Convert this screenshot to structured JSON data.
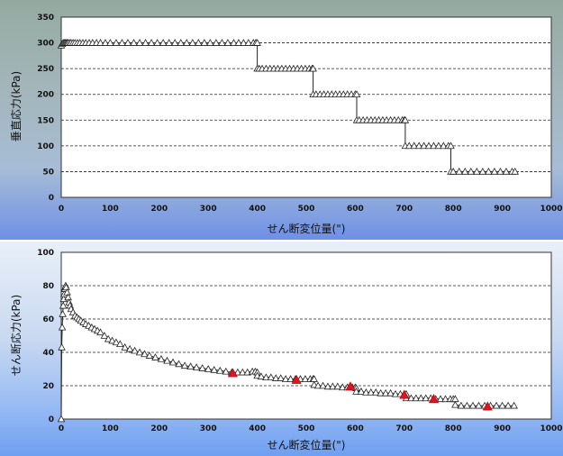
{
  "chart_data": [
    {
      "type": "line",
      "xlabel": "せん断変位量(\")",
      "ylabel": "垂直応力(kPa)",
      "xlim": [
        0,
        1000
      ],
      "ylim": [
        0,
        350
      ],
      "x_ticks": [
        "0",
        "100",
        "200",
        "300",
        "400",
        "500",
        "600",
        "700",
        "800",
        "900",
        "1000"
      ],
      "y_ticks": [
        "0",
        "50",
        "100",
        "150",
        "200",
        "250",
        "300",
        "350"
      ],
      "grid": "horizontal dashed",
      "marker": "open-triangle",
      "series": [
        {
          "values_x": [
            0,
            2,
            4,
            6,
            8,
            10,
            12,
            14,
            17,
            20,
            24,
            28,
            33,
            38,
            44,
            50,
            57,
            64,
            72,
            80,
            90,
            100,
            112,
            124,
            136,
            148,
            160,
            172,
            184,
            196,
            208,
            220,
            232,
            244,
            256,
            268,
            280,
            292,
            304,
            316,
            328,
            340,
            352,
            362,
            372,
            382,
            392,
            397,
            400,
            400,
            404,
            410,
            418,
            426,
            434,
            442,
            450,
            458,
            466,
            474,
            482,
            490,
            498,
            506,
            512,
            514,
            514,
            520,
            528,
            536,
            544,
            552,
            560,
            568,
            576,
            584,
            592,
            600,
            603,
            603,
            608,
            616,
            624,
            632,
            640,
            648,
            656,
            664,
            672,
            680,
            688,
            696,
            700,
            702,
            702,
            710,
            720,
            730,
            740,
            750,
            760,
            770,
            780,
            790,
            795,
            795,
            800,
            812,
            824,
            836,
            848,
            860,
            872,
            884,
            896,
            908,
            920,
            926
          ],
          "values_y": [
            295,
            298,
            300,
            300,
            300,
            300,
            300,
            300,
            300,
            300,
            300,
            300,
            300,
            300,
            300,
            300,
            300,
            300,
            300,
            300,
            300,
            300,
            300,
            300,
            300,
            300,
            300,
            300,
            300,
            300,
            300,
            300,
            300,
            300,
            300,
            300,
            300,
            300,
            300,
            300,
            300,
            300,
            300,
            300,
            300,
            300,
            300,
            300,
            300,
            250,
            250,
            250,
            250,
            250,
            250,
            250,
            250,
            250,
            250,
            250,
            250,
            250,
            250,
            250,
            250,
            250,
            200,
            200,
            200,
            200,
            200,
            200,
            200,
            200,
            200,
            200,
            200,
            200,
            200,
            150,
            150,
            150,
            150,
            150,
            150,
            150,
            150,
            150,
            150,
            150,
            150,
            150,
            150,
            150,
            100,
            100,
            100,
            100,
            100,
            100,
            100,
            100,
            100,
            100,
            100,
            50,
            50,
            50,
            50,
            50,
            50,
            50,
            50,
            50,
            50,
            50,
            50,
            50
          ]
        }
      ]
    },
    {
      "type": "scatter",
      "xlabel": "せん断変位量(\")",
      "ylabel": "せん断応力(kPa)",
      "xlim": [
        0,
        1000
      ],
      "ylim": [
        0,
        100
      ],
      "x_ticks": [
        "0",
        "100",
        "200",
        "300",
        "400",
        "500",
        "600",
        "700",
        "800",
        "900",
        "1000"
      ],
      "y_ticks": [
        "0",
        "20",
        "40",
        "60",
        "80",
        "100"
      ],
      "grid": "horizontal dashed",
      "marker": "open-triangle",
      "series": [
        {
          "values_x": [
            0,
            1,
            2,
            3,
            4,
            5,
            6,
            7,
            8,
            9,
            10,
            12,
            14,
            16,
            18,
            20,
            24,
            28,
            32,
            36,
            40,
            45,
            50,
            56,
            62,
            68,
            74,
            80,
            88,
            96,
            104,
            112,
            120,
            130,
            140,
            150,
            160,
            170,
            180,
            192,
            204,
            216,
            228,
            240,
            252,
            264,
            276,
            288,
            300,
            312,
            324,
            336,
            348,
            360,
            370,
            380,
            390,
            396,
            400,
            400,
            408,
            418,
            428,
            438,
            448,
            458,
            468,
            478,
            488,
            498,
            508,
            514,
            516,
            516,
            524,
            534,
            544,
            554,
            564,
            574,
            584,
            594,
            600,
            602,
            602,
            612,
            622,
            632,
            642,
            652,
            662,
            672,
            682,
            692,
            700,
            704,
            704,
            714,
            724,
            734,
            744,
            754,
            764,
            774,
            784,
            794,
            800,
            804,
            804,
            816,
            828,
            840,
            852,
            864,
            876,
            888,
            900,
            912,
            924
          ],
          "values_y": [
            0,
            43,
            55,
            63,
            68,
            72,
            75,
            78,
            79,
            80,
            79,
            76,
            73,
            70,
            68,
            66,
            64,
            62,
            61,
            60,
            59,
            58,
            57,
            56,
            55,
            54,
            53,
            52,
            50,
            48,
            47,
            46,
            45,
            43,
            42,
            41,
            40,
            39,
            38,
            37,
            36,
            35,
            34,
            33,
            32,
            31.5,
            31,
            30.5,
            30,
            29.5,
            29,
            28.5,
            28,
            28,
            28,
            28,
            28.5,
            28.5,
            28,
            26,
            25.5,
            25,
            25,
            24.5,
            24.5,
            24,
            24,
            24,
            24,
            24,
            24,
            24,
            24,
            20.5,
            20,
            20,
            19.5,
            19.5,
            19.5,
            19,
            19,
            19,
            19,
            18.5,
            16.5,
            16.5,
            16,
            16,
            16,
            15.5,
            15.5,
            15.5,
            15,
            15,
            15,
            15,
            12.5,
            12.5,
            12.5,
            12.5,
            12.5,
            12.5,
            12,
            12,
            12,
            12,
            12,
            12,
            8.5,
            8,
            8,
            8,
            8,
            8,
            8,
            8,
            8,
            8,
            8
          ]
        },
        {
          "marker": "filled-red-triangle",
          "color": "#e0141e",
          "values_x": [
            350,
            480,
            590,
            700,
            760,
            870
          ],
          "values_y": [
            27.5,
            23.5,
            19.5,
            14.5,
            12,
            7.5
          ]
        }
      ]
    }
  ]
}
